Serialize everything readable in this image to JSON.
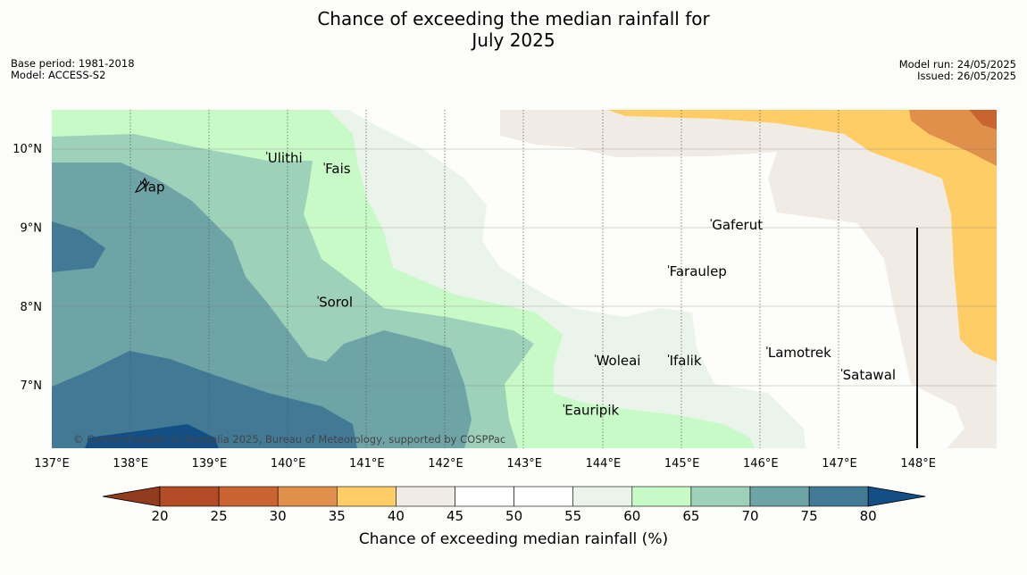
{
  "title_line1": "Chance of exceeding the median rainfall for",
  "title_line2": "July 2025",
  "base_period": "Base period: 1981-2018",
  "model": "Model: ACCESS-S2",
  "model_run": "Model run: 24/05/2025",
  "issued": "Issued: 26/05/2025",
  "copyright": "© Commonwealth of Australia 2025, Bureau of Meteorology, supported by COSPPac",
  "map": {
    "lon_range": [
      137,
      149
    ],
    "lat_range": [
      6.2,
      10.5
    ],
    "lon_ticks": [
      "137°E",
      "138°E",
      "139°E",
      "140°E",
      "141°E",
      "142°E",
      "143°E",
      "144°E",
      "145°E",
      "146°E",
      "147°E",
      "148°E"
    ],
    "lat_ticks": [
      "10°N",
      "9°N",
      "8°N",
      "7°N"
    ],
    "places": [
      {
        "name": "Yap",
        "lon": 138.13,
        "lat": 9.53
      },
      {
        "name": "Ulithi",
        "lon": 139.73,
        "lat": 9.9
      },
      {
        "name": "Fais",
        "lon": 140.46,
        "lat": 9.76
      },
      {
        "name": "Gaferut",
        "lon": 145.37,
        "lat": 9.05
      },
      {
        "name": "Faraulep",
        "lon": 144.83,
        "lat": 8.46
      },
      {
        "name": "Sorol",
        "lon": 140.38,
        "lat": 8.07
      },
      {
        "name": "Lamotrek",
        "lon": 146.08,
        "lat": 7.43
      },
      {
        "name": "Woleai",
        "lon": 143.9,
        "lat": 7.33
      },
      {
        "name": "Ifalik",
        "lon": 144.83,
        "lat": 7.33
      },
      {
        "name": "Satawal",
        "lon": 147.03,
        "lat": 7.15
      },
      {
        "name": "Eauripik",
        "lon": 143.5,
        "lat": 6.7
      }
    ]
  },
  "colorbar": {
    "label": "Chance of exceeding median rainfall (%)",
    "ticks": [
      "20",
      "25",
      "30",
      "35",
      "40",
      "45",
      "50",
      "55",
      "60",
      "65",
      "70",
      "75",
      "80"
    ],
    "colors": {
      "below_20": "#913b1f",
      "20_25": "#b24c27",
      "25_30": "#c96430",
      "30_35": "#e0904a",
      "35_40": "#ffcd66",
      "40_45": "#f1ebe6",
      "45_50": "#ffffff",
      "50_55": "#ffffff",
      "55_60": "#ebf4ea",
      "60_65": "#c8fac8",
      "65_70": "#9ed1b9",
      "70_75": "#6fa4a6",
      "75_80": "#427a96",
      "above_80": "#134f84"
    }
  }
}
